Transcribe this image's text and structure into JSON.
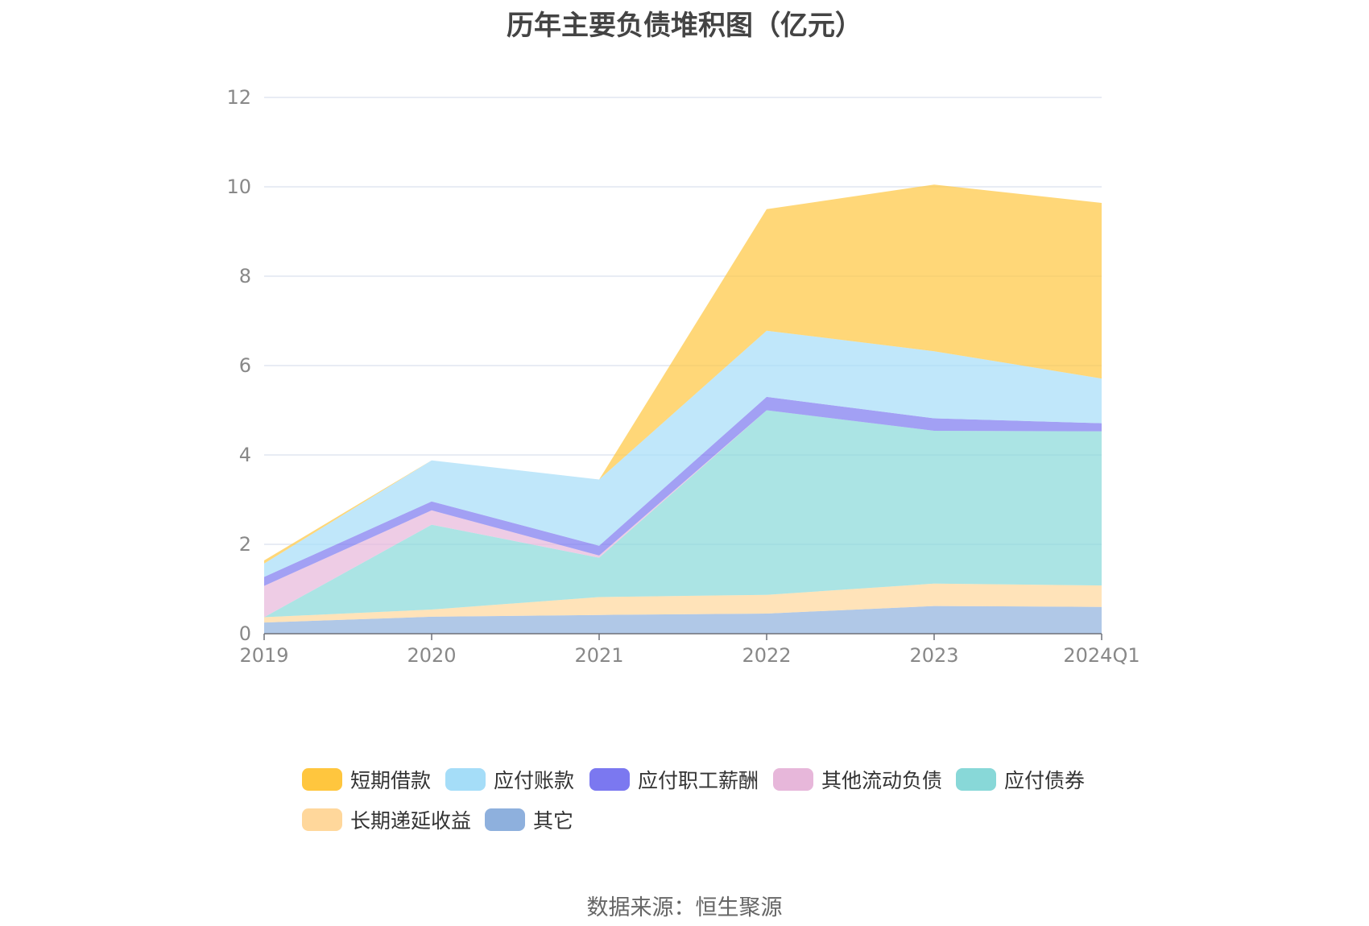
{
  "chart_data": {
    "type": "area",
    "stacked": true,
    "title": "历年主要负债堆积图（亿元）",
    "categories": [
      "2019",
      "2020",
      "2021",
      "2022",
      "2023",
      "2024Q1"
    ],
    "ylim": [
      0,
      12
    ],
    "yticks": [
      "0",
      "2",
      "4",
      "6",
      "8",
      "10",
      "12"
    ],
    "grid": true,
    "legend_position": "bottom",
    "series": [
      {
        "name": "其它",
        "color": "#8EB0DD",
        "values": [
          0.25,
          0.38,
          0.42,
          0.45,
          0.62,
          0.6
        ]
      },
      {
        "name": "长期递延收益",
        "color": "#FFD79B",
        "values": [
          0.12,
          0.16,
          0.4,
          0.42,
          0.5,
          0.48
        ]
      },
      {
        "name": "应付债券",
        "color": "#88D8D8",
        "values": [
          0.0,
          1.9,
          0.88,
          4.13,
          3.42,
          3.45
        ]
      },
      {
        "name": "其他流动负债",
        "color": "#E7B7DA",
        "values": [
          0.7,
          0.32,
          0.05,
          0.0,
          0.0,
          0.0
        ]
      },
      {
        "name": "应付职工薪酬",
        "color": "#7B78F0",
        "values": [
          0.2,
          0.2,
          0.22,
          0.3,
          0.28,
          0.18
        ]
      },
      {
        "name": "应付账款",
        "color": "#A5DDF8",
        "values": [
          0.3,
          0.92,
          1.48,
          1.48,
          1.5,
          1.0
        ]
      },
      {
        "name": "短期借款",
        "color": "#FFC63E",
        "values": [
          0.07,
          0.0,
          0.0,
          2.72,
          3.73,
          3.93
        ]
      }
    ],
    "legend_order": [
      "短期借款",
      "应付账款",
      "应付职工薪酬",
      "其他流动负债",
      "应付债券",
      "长期递延收益",
      "其它"
    ]
  },
  "source": "数据来源：恒生聚源"
}
